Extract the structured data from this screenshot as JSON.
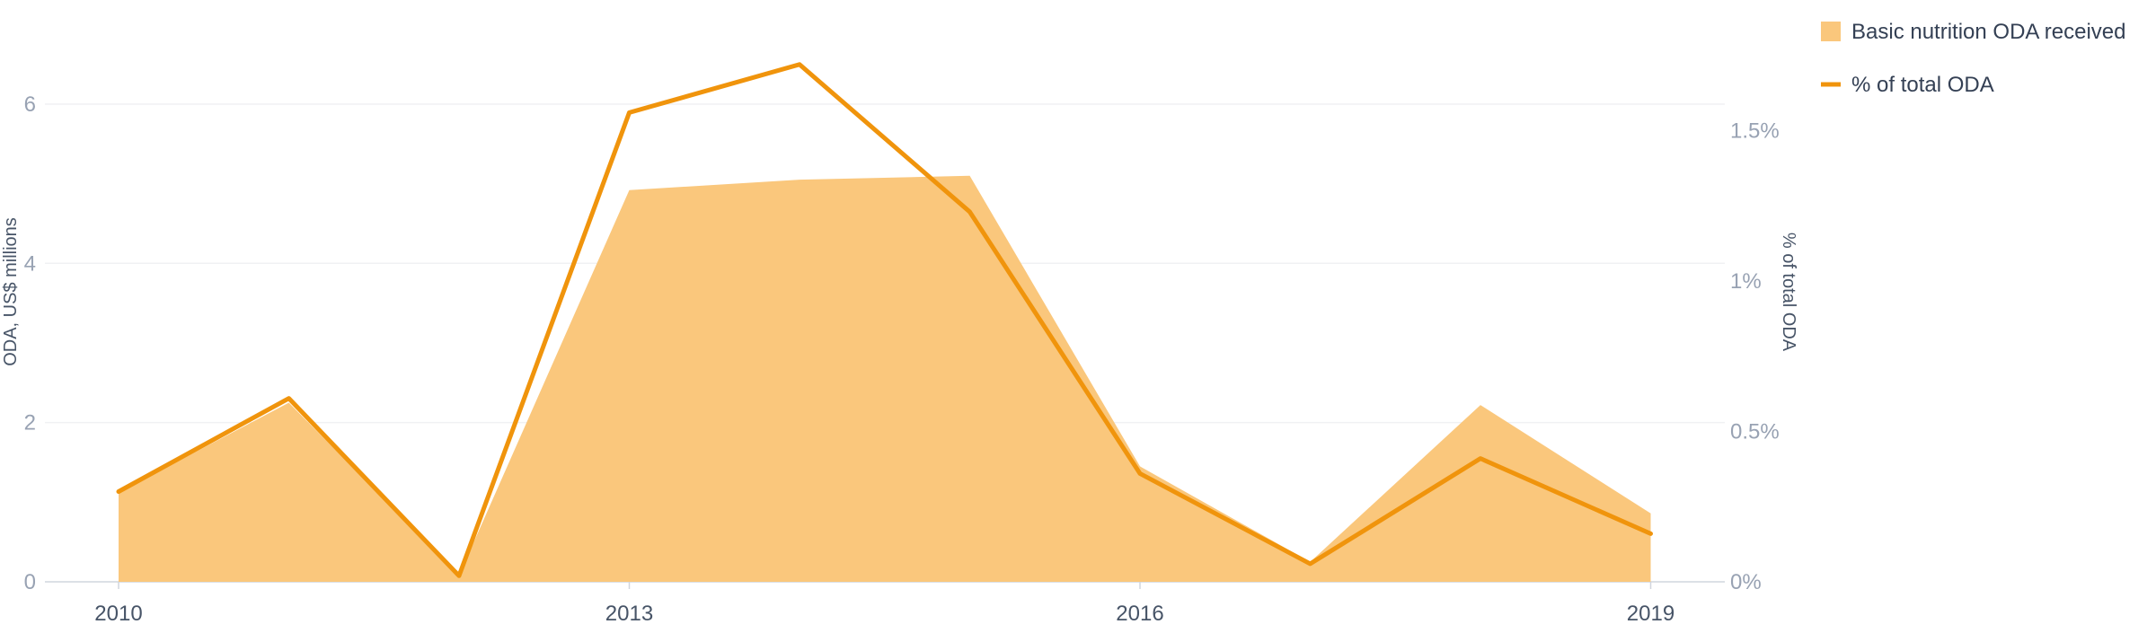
{
  "chart_data": {
    "type": "area",
    "x": [
      "2010",
      "2011",
      "2012",
      "2013",
      "2014",
      "2015",
      "2016",
      "2017",
      "2018",
      "2019"
    ],
    "x_tick_labels": [
      "2010",
      "2013",
      "2016",
      "2019"
    ],
    "series": [
      {
        "name": "Basic nutrition ODA received",
        "type": "area",
        "axis": "left",
        "color": "#fac77c",
        "values": [
          1.12,
          2.25,
          0.08,
          4.92,
          5.05,
          5.1,
          1.45,
          0.25,
          2.22,
          0.86
        ]
      },
      {
        "name": "% of total ODA",
        "type": "line",
        "axis": "right",
        "color": "#f0940c",
        "values": [
          0.3,
          0.61,
          0.02,
          1.56,
          1.72,
          1.23,
          0.36,
          0.06,
          0.41,
          0.16
        ]
      }
    ],
    "y_left": {
      "label": "ODA, US$ millions",
      "ticks": [
        0,
        2,
        4,
        6
      ],
      "tick_labels": [
        "0",
        "2",
        "4",
        "6"
      ],
      "range": [
        0,
        6.8
      ]
    },
    "y_right": {
      "label": "% of total ODA",
      "ticks": [
        0,
        0.5,
        1,
        1.5
      ],
      "tick_labels": [
        "0%",
        "0.5%",
        "1%",
        "1.5%"
      ],
      "range": [
        0,
        1.8
      ]
    },
    "grid": true,
    "legend_position": "top-right"
  }
}
